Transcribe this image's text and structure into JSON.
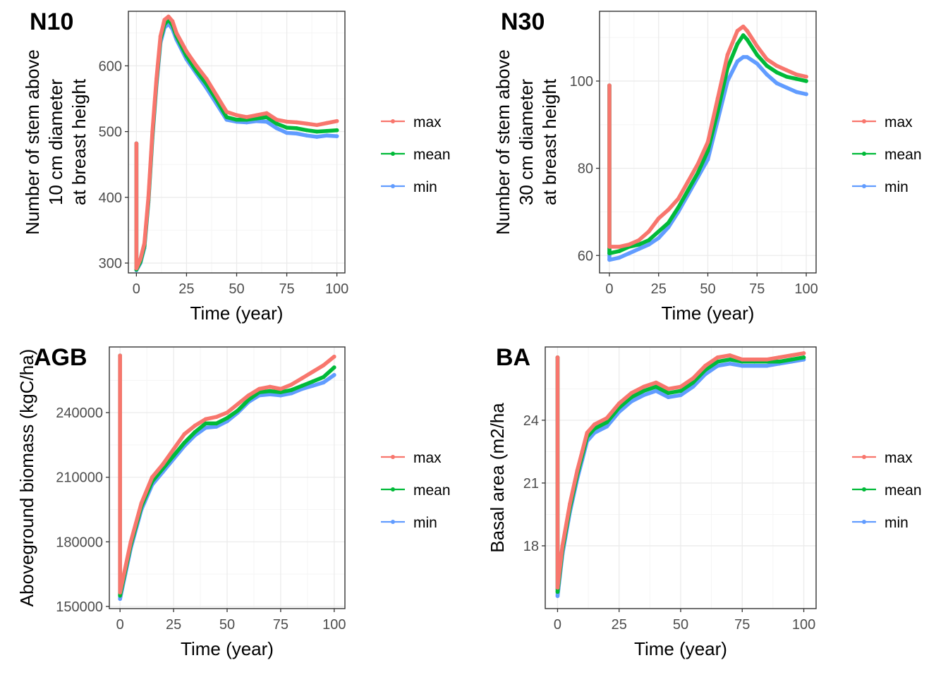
{
  "colors": {
    "max": "#F8766D",
    "mean": "#00BA38",
    "min": "#619CFF",
    "grid_major": "#ebebeb",
    "grid_minor": "#f5f5f5",
    "axis": "#333333"
  },
  "chart_data": [
    {
      "type": "line",
      "tag": "N10",
      "ylabel": [
        "Number of stem above",
        "10 cm diameter",
        "at breast height"
      ],
      "xlabel": "Time (year)",
      "xlim": [
        -4,
        104
      ],
      "ylim": [
        285,
        683
      ],
      "xticks": [
        0,
        25,
        50,
        75,
        100
      ],
      "yticks": [
        300,
        400,
        500,
        600
      ],
      "xtick_labels": [
        "0",
        "25",
        "50",
        "75",
        "100"
      ],
      "ytick_labels": [
        "300",
        "400",
        "500",
        "600"
      ],
      "legend": [
        "max",
        "mean",
        "min"
      ],
      "x": [
        0,
        0,
        2,
        4,
        6,
        8,
        10,
        12,
        14,
        16,
        18,
        20,
        25,
        30,
        35,
        40,
        45,
        50,
        55,
        60,
        65,
        70,
        75,
        80,
        85,
        90,
        95,
        100
      ],
      "series": [
        {
          "name": "max",
          "values": [
            482,
            292,
            306,
            330,
            400,
            500,
            580,
            645,
            670,
            675,
            668,
            650,
            622,
            600,
            580,
            555,
            530,
            525,
            522,
            525,
            528,
            518,
            515,
            514,
            512,
            510,
            513,
            516
          ]
        },
        {
          "name": "mean",
          "values": [
            482,
            290,
            302,
            326,
            395,
            494,
            575,
            640,
            663,
            670,
            662,
            645,
            615,
            592,
            572,
            548,
            522,
            518,
            518,
            520,
            522,
            512,
            506,
            505,
            502,
            500,
            501,
            502
          ]
        },
        {
          "name": "min",
          "values": [
            482,
            289,
            300,
            323,
            392,
            490,
            570,
            635,
            658,
            664,
            656,
            640,
            610,
            588,
            566,
            542,
            518,
            515,
            514,
            516,
            515,
            505,
            498,
            497,
            494,
            492,
            494,
            493
          ]
        }
      ]
    },
    {
      "type": "line",
      "tag": "N30",
      "ylabel": [
        "Number of stem above",
        "30 cm diameter",
        "at breast height"
      ],
      "xlabel": "Time (year)",
      "xlim": [
        -5,
        105
      ],
      "ylim": [
        56,
        116
      ],
      "xticks": [
        0,
        25,
        50,
        75,
        100
      ],
      "yticks": [
        60,
        80,
        100
      ],
      "xtick_labels": [
        "0",
        "25",
        "50",
        "75",
        "100"
      ],
      "ytick_labels": [
        "60",
        "80",
        "100"
      ],
      "legend": [
        "max",
        "mean",
        "min"
      ],
      "x": [
        0,
        0,
        5,
        10,
        15,
        20,
        25,
        30,
        35,
        40,
        45,
        50,
        55,
        60,
        65,
        68,
        70,
        75,
        80,
        85,
        90,
        95,
        100
      ],
      "series": [
        {
          "name": "max",
          "values": [
            99,
            62,
            62,
            62.5,
            63.5,
            65.5,
            68.5,
            70.5,
            73,
            77,
            81,
            86,
            96,
            106,
            111.5,
            112.5,
            111.5,
            108,
            105,
            103.5,
            102.5,
            101.5,
            101
          ]
        },
        {
          "name": "mean",
          "values": [
            99,
            60.5,
            61,
            62,
            62.5,
            63.5,
            65.5,
            67.5,
            71,
            75,
            79,
            84,
            93,
            103,
            108.5,
            110.5,
            109.5,
            106,
            103.5,
            102,
            101,
            100.5,
            100
          ]
        },
        {
          "name": "min",
          "values": [
            99,
            59,
            59.5,
            60.5,
            61.5,
            62.5,
            64,
            66.5,
            70,
            74,
            78,
            82,
            91,
            100,
            104.5,
            105.5,
            105.5,
            104,
            101.5,
            99.5,
            98.5,
            97.5,
            97
          ]
        }
      ]
    },
    {
      "type": "line",
      "tag": "AGB",
      "ylabel": [
        "Aboveground biomass (kgC/ha)"
      ],
      "xlabel": "Time (year)",
      "xlim": [
        -5,
        105
      ],
      "ylim": [
        149000,
        270500
      ],
      "xticks": [
        0,
        25,
        50,
        75,
        100
      ],
      "yticks": [
        150000,
        180000,
        210000,
        240000
      ],
      "xtick_labels": [
        "0",
        "25",
        "50",
        "75",
        "100"
      ],
      "ytick_labels": [
        "150000",
        "180000",
        "210000",
        "240000"
      ],
      "legend": [
        "max",
        "mean",
        "min"
      ],
      "x": [
        0,
        0,
        5,
        10,
        15,
        20,
        25,
        30,
        35,
        40,
        45,
        50,
        55,
        60,
        65,
        70,
        75,
        80,
        85,
        90,
        95,
        100
      ],
      "series": [
        {
          "name": "max",
          "values": [
            266500,
            156500,
            180000,
            198000,
            210000,
            216000,
            223000,
            230000,
            234000,
            237000,
            238000,
            240000,
            244000,
            248000,
            251000,
            252000,
            251000,
            253000,
            256000,
            259000,
            262000,
            266000
          ]
        },
        {
          "name": "mean",
          "values": [
            266500,
            155000,
            178500,
            196500,
            208000,
            214000,
            220000,
            226000,
            231000,
            235000,
            235000,
            237500,
            241000,
            246000,
            249500,
            250000,
            249500,
            250500,
            252500,
            254500,
            256500,
            261000
          ]
        },
        {
          "name": "min",
          "values": [
            266500,
            153500,
            177000,
            195000,
            206500,
            212500,
            218500,
            224500,
            229500,
            233000,
            233500,
            236000,
            240000,
            245000,
            248000,
            248500,
            248000,
            249000,
            251000,
            252500,
            254000,
            257500
          ]
        }
      ]
    },
    {
      "type": "line",
      "tag": "BA",
      "ylabel": [
        "Basal area (m2/ha"
      ],
      "xlabel": "Time (year)",
      "xlim": [
        -5,
        105
      ],
      "ylim": [
        15,
        27.5
      ],
      "xticks": [
        0,
        25,
        50,
        75,
        100
      ],
      "yticks": [
        18,
        21,
        24
      ],
      "xtick_labels": [
        "0",
        "25",
        "50",
        "75",
        "100"
      ],
      "ytick_labels": [
        "18",
        "21",
        "24"
      ],
      "legend": [
        "max",
        "mean",
        "min"
      ],
      "x": [
        0,
        0,
        2,
        5,
        8,
        10,
        12,
        15,
        20,
        25,
        30,
        35,
        40,
        45,
        50,
        55,
        60,
        65,
        70,
        75,
        80,
        85,
        90,
        95,
        100
      ],
      "series": [
        {
          "name": "max",
          "values": [
            27,
            16,
            18,
            20,
            21.6,
            22.5,
            23.4,
            23.8,
            24.1,
            24.8,
            25.3,
            25.6,
            25.8,
            25.5,
            25.6,
            26,
            26.6,
            27,
            27.1,
            26.9,
            26.9,
            26.9,
            27,
            27.1,
            27.2
          ]
        },
        {
          "name": "mean",
          "values": [
            27,
            15.8,
            17.8,
            19.8,
            21.4,
            22.3,
            23.2,
            23.6,
            23.9,
            24.6,
            25.1,
            25.4,
            25.6,
            25.3,
            25.4,
            25.8,
            26.4,
            26.8,
            26.9,
            26.8,
            26.8,
            26.8,
            26.8,
            26.9,
            27
          ]
        },
        {
          "name": "min",
          "values": [
            27,
            15.6,
            17.6,
            19.6,
            21.2,
            22.1,
            23,
            23.4,
            23.7,
            24.4,
            24.9,
            25.2,
            25.4,
            25.1,
            25.2,
            25.6,
            26.2,
            26.6,
            26.7,
            26.6,
            26.6,
            26.6,
            26.7,
            26.8,
            26.9
          ]
        }
      ]
    }
  ]
}
